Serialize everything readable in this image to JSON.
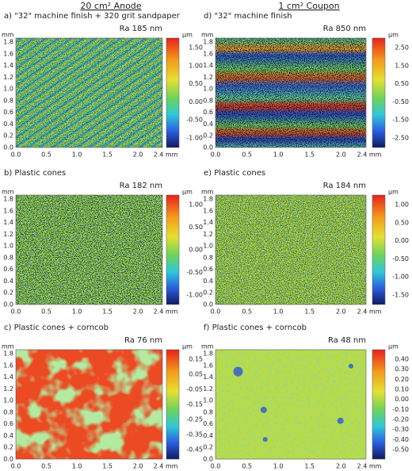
{
  "header": {
    "left": "20 cm² Anode",
    "right": "1 cm² Coupon"
  },
  "panels": [
    {
      "title": "a)  \"32\" machine finish + 320 grit sandpaper",
      "ra": "Ra 185 nm",
      "y_unit": "mm",
      "color_unit": "µm",
      "yticks": [
        "1.8",
        "1.6",
        "1.4",
        "1.2",
        "1.0",
        "0.8",
        "0.6",
        "0.4",
        "0.2",
        "0.0"
      ],
      "xticks": [
        "0.0",
        "0.5",
        "1.0",
        "1.5",
        "2.0"
      ],
      "x_end": "2.4 mm",
      "colorbar_ticks": [
        "1.50",
        "1.00",
        "0.50",
        "0.00",
        "-0.50",
        "-1.00"
      ]
    },
    {
      "title": "b) Plastic cones",
      "ra": "Ra 182 nm",
      "y_unit": "mm",
      "color_unit": "µm",
      "yticks": [
        "1.8",
        "1.6",
        "1.4",
        "1.2",
        "1.0",
        "0.8",
        "0.6",
        "0.4",
        "0.2",
        "0.0"
      ],
      "xticks": [
        "0.0",
        "0.5",
        "1.0",
        "1.5",
        "2.0"
      ],
      "x_end": "2.4 mm",
      "colorbar_ticks": [
        "1.00",
        "0.50",
        "0.00",
        "-0.50",
        "-1.00"
      ]
    },
    {
      "title": "c) Plastic cones + corncob",
      "ra": "Ra 76 nm",
      "y_unit": "mm",
      "color_unit": "µm",
      "yticks": [
        "1.8",
        "1.6",
        "1.4",
        "1.2",
        "1.0",
        "0.8",
        "0.6",
        "0.4",
        "0.2",
        "0.0"
      ],
      "xticks": [
        "0.0",
        "0.5",
        "1.0",
        "1.5",
        "2.0"
      ],
      "x_end": "2.4 mm",
      "colorbar_ticks": [
        "0.15",
        "0.05",
        "-0.05",
        "-0.15",
        "-0.25",
        "-0.35",
        "-0.45"
      ]
    },
    {
      "title": "d) \"32\" machine finish",
      "ra": "Ra 850 nm",
      "y_unit": "mm",
      "color_unit": "µm",
      "yticks": [
        "1.8",
        "1.6",
        "1.4",
        "1.2",
        "1.0",
        "0.8",
        "0.6",
        "0.4",
        "0.2",
        "0.0"
      ],
      "xticks": [
        "0.0",
        "0.5",
        "1.0",
        "1.5",
        "2.0"
      ],
      "x_end": "2.4 mm",
      "colorbar_ticks": [
        "2.50",
        "1.50",
        "0.50",
        "-0.50",
        "-1.50",
        "-2.50"
      ]
    },
    {
      "title": "e) Plastic cones",
      "ra": "Ra 184 nm",
      "y_unit": "mm",
      "color_unit": "µm",
      "yticks": [
        "1.8",
        "1.6",
        "1.4",
        "1.2",
        "1.0",
        "0.8",
        "0.6",
        "0.4",
        "0.2",
        "0.0"
      ],
      "xticks": [
        "0.0",
        "0.5",
        "1.0",
        "1.5",
        "2.0"
      ],
      "x_end": "2.4 mm",
      "colorbar_ticks": [
        "1.00",
        "0.50",
        "0.00",
        "-0.50",
        "-1.00",
        "-1.50"
      ]
    },
    {
      "title": "f) Plastic cones + corncob",
      "ra": "Ra 48 nm",
      "y_unit": "mm",
      "color_unit": "µm",
      "yticks": [
        "1.8",
        "1.6",
        "1.4",
        "1.2",
        "1.0",
        "0.8",
        "0.6",
        "0.4",
        "0.2",
        "0.0"
      ],
      "xticks": [
        "0.0",
        "0.5",
        "1.0",
        "1.5",
        "2.0"
      ],
      "x_end": "2.4 mm",
      "colorbar_ticks": [
        "0.40",
        "0.30",
        "0.20",
        "0.10",
        "0.00",
        "-0.10",
        "-0.20",
        "-0.30",
        "-0.40",
        "-0.50"
      ]
    }
  ]
}
